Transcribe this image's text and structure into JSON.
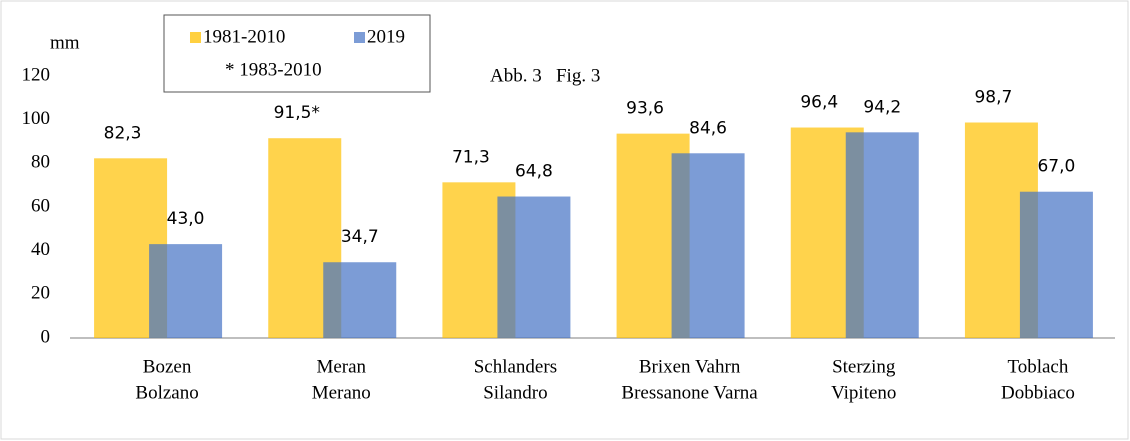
{
  "chart_data": {
    "type": "bar",
    "title": "Abb. 3   Fig. 3",
    "y_label": "mm",
    "annotation": "* 1983-2010",
    "categories": [
      [
        "Bozen",
        "Bolzano"
      ],
      [
        "Meran",
        "Merano"
      ],
      [
        "Schlanders",
        "Silandro"
      ],
      [
        "Brixen Vahrn",
        "Bressanone Varna"
      ],
      [
        "Sterzing",
        "Vipiteno"
      ],
      [
        "Toblach",
        "Dobbiaco"
      ]
    ],
    "series": [
      {
        "name": "1981-2010",
        "color": "#ffc000",
        "values": [
          82.3,
          91.5,
          71.3,
          93.6,
          96.4,
          98.7
        ],
        "value_labels": [
          "82,3",
          "91,5*",
          "71,3",
          "93,6",
          "96,4",
          "98,7"
        ]
      },
      {
        "name": "2019",
        "color": "#4472c4",
        "values": [
          43.0,
          34.7,
          64.8,
          84.6,
          94.2,
          67.0
        ],
        "value_labels": [
          "43,0",
          "34,7",
          "64,8",
          "84,6",
          "94,2",
          "67,0"
        ]
      }
    ],
    "ylim": [
      0,
      120
    ],
    "yticks": [
      0,
      20,
      40,
      60,
      80,
      100,
      120
    ],
    "grid": false,
    "legend": "top-left"
  }
}
